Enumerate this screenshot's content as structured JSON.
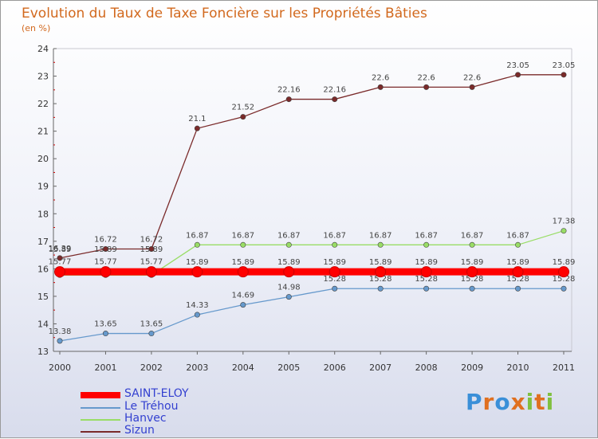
{
  "logo_text": "Proxiti",
  "chart_data": {
    "type": "line",
    "title": "Evolution du Taux de Taxe Foncière sur les Propriétés Bâties",
    "unit": "(en %)",
    "xlabel": "",
    "ylabel": "",
    "ylim": [
      13,
      24
    ],
    "yticks": [
      "13",
      "14",
      "15",
      "16",
      "17",
      "18",
      "19",
      "20",
      "21",
      "22",
      "23",
      "24"
    ],
    "categories": [
      "2000",
      "2001",
      "2002",
      "2003",
      "2004",
      "2005",
      "2006",
      "2007",
      "2008",
      "2009",
      "2010",
      "2011"
    ],
    "legend_position": "bottom-left",
    "series": [
      {
        "name": "SAINT-ELOY",
        "color": "#ff0000",
        "values": [
          15.89,
          15.89,
          15.89,
          15.89,
          15.89,
          15.89,
          15.89,
          15.89,
          15.89,
          15.89,
          15.89,
          15.89
        ],
        "labels": [
          "15.89",
          "15.89",
          "15.89",
          "15.89",
          "15.89",
          "15.89",
          "15.89",
          "15.89",
          "15.89",
          "15.89",
          "15.89",
          "15.89"
        ]
      },
      {
        "name": "Le Tréhou",
        "color": "#6699cc",
        "values": [
          13.38,
          13.65,
          13.65,
          14.33,
          14.69,
          14.98,
          15.28,
          15.28,
          15.28,
          15.28,
          15.28,
          15.28
        ],
        "labels": [
          "13.38",
          "13.65",
          "13.65",
          "14.33",
          "14.69",
          "14.98",
          "15.28",
          "15.28",
          "15.28",
          "15.28",
          "15.28",
          "15.28"
        ]
      },
      {
        "name": "Hanvec",
        "color": "#99dd66",
        "values": [
          15.77,
          15.77,
          15.77,
          16.87,
          16.87,
          16.87,
          16.87,
          16.87,
          16.87,
          16.87,
          16.87,
          17.38
        ],
        "labels": [
          "15.77",
          "15.77",
          "15.77",
          "16.87",
          "16.87",
          "16.87",
          "16.87",
          "16.87",
          "16.87",
          "16.87",
          "16.87",
          "17.38"
        ]
      },
      {
        "name": "Sizun",
        "color": "#7a2a2a",
        "values": [
          16.39,
          16.72,
          16.72,
          21.1,
          21.52,
          22.16,
          22.16,
          22.6,
          22.6,
          22.6,
          23.05,
          23.05
        ],
        "labels": [
          "16.39",
          "16.72",
          "16.72",
          "21.1",
          "21.52",
          "22.16",
          "22.16",
          "22.6",
          "22.6",
          "22.6",
          "23.05",
          "23.05"
        ]
      }
    ]
  }
}
